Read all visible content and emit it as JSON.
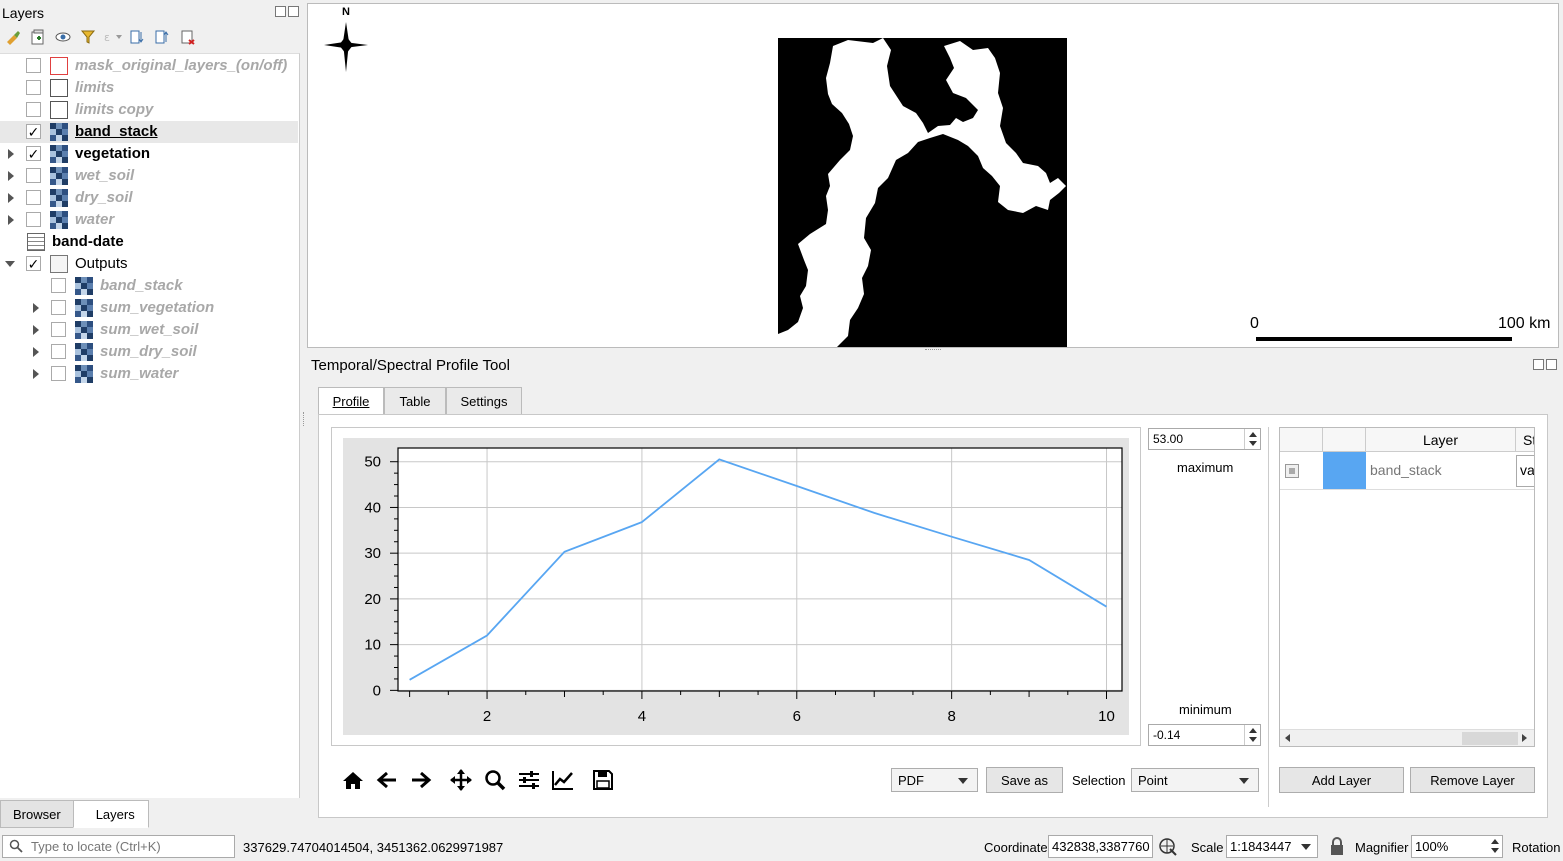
{
  "layers_panel": {
    "title": "Layers",
    "layers": [
      {
        "name": "mask_original_layers_(on/off)",
        "checked": false,
        "style": "off",
        "icon": "polygon-red-icon",
        "expander": false,
        "indent": 0
      },
      {
        "name": "limits",
        "checked": false,
        "style": "off",
        "icon": "polygon-icon",
        "expander": false,
        "indent": 0
      },
      {
        "name": "limits copy",
        "checked": false,
        "style": "off",
        "icon": "polygon-icon",
        "expander": false,
        "indent": 0
      },
      {
        "name": "band_stack",
        "checked": true,
        "style": "on",
        "icon": "raster-icon",
        "expander": false,
        "indent": 0,
        "selected": true
      },
      {
        "name": "vegetation",
        "checked": true,
        "style": "on",
        "icon": "raster-icon",
        "expander": true,
        "indent": 0
      },
      {
        "name": "wet_soil",
        "checked": false,
        "style": "off",
        "icon": "raster-icon",
        "expander": true,
        "indent": 0
      },
      {
        "name": "dry_soil",
        "checked": false,
        "style": "off",
        "icon": "raster-icon",
        "expander": true,
        "indent": 0
      },
      {
        "name": "water",
        "checked": false,
        "style": "off",
        "icon": "raster-icon",
        "expander": true,
        "indent": 0
      },
      {
        "name": "band-date",
        "checked": null,
        "style": "on",
        "icon": "table-icon",
        "expander": false,
        "indent": 0
      },
      {
        "name": "Outputs",
        "checked": true,
        "style": "plain",
        "icon": "group-icon",
        "expander": "open",
        "indent": 0
      },
      {
        "name": "band_stack",
        "checked": false,
        "style": "off",
        "icon": "raster-icon",
        "expander": false,
        "indent": 1
      },
      {
        "name": "sum_vegetation",
        "checked": false,
        "style": "off",
        "icon": "raster-icon",
        "expander": true,
        "indent": 1
      },
      {
        "name": "sum_wet_soil",
        "checked": false,
        "style": "off",
        "icon": "raster-icon",
        "expander": true,
        "indent": 1
      },
      {
        "name": "sum_dry_soil",
        "checked": false,
        "style": "off",
        "icon": "raster-icon",
        "expander": true,
        "indent": 1
      },
      {
        "name": "sum_water",
        "checked": false,
        "style": "off",
        "icon": "raster-icon",
        "expander": true,
        "indent": 1
      }
    ],
    "bottom_tabs": [
      "Browser",
      "Layers"
    ],
    "active_bottom_tab": "Layers"
  },
  "map": {
    "north_label": "N",
    "scale_start": "0",
    "scale_end": "100 km"
  },
  "profile_tool": {
    "title": "Temporal/Spectral Profile Tool",
    "tabs": [
      "Profile",
      "Table",
      "Settings"
    ],
    "active_tab": "Profile",
    "maximum_value": "53.00",
    "maximum_label": "maximum",
    "minimum_label": "minimum",
    "minimum_value": "-0.14",
    "layers_table": {
      "headers": [
        "",
        "",
        "Layer",
        "St"
      ],
      "rows": [
        {
          "layer": "band_stack",
          "color": "#58a6f2",
          "status": "va"
        }
      ]
    },
    "add_layer_label": "Add Layer",
    "remove_layer_label": "Remove Layer",
    "export_format": "PDF",
    "save_as_label": "Save as",
    "selection_label": "Selection",
    "selection_value": "Point",
    "plot_tools": [
      "home-icon",
      "back-arrow-icon",
      "forward-arrow-icon",
      "pan-icon",
      "zoom-icon",
      "configure-subplots-icon",
      "edit-curve-icon",
      "save-figure-icon"
    ]
  },
  "chart_data": {
    "type": "line",
    "title": "",
    "xlabel": "",
    "ylabel": "",
    "x": [
      1,
      2,
      3,
      4,
      5,
      6,
      7,
      8,
      9,
      10
    ],
    "series": [
      {
        "values": [
          2.3,
          12.0,
          30.3,
          36.8,
          50.5,
          44.7,
          38.8,
          33.6,
          28.5,
          18.3
        ],
        "color": "#58a6f2"
      }
    ],
    "xlim": [
      0.85,
      10.2
    ],
    "ylim": [
      -0.14,
      53.0
    ],
    "xticks": [
      2,
      4,
      6,
      8,
      10
    ],
    "yticks": [
      0,
      10,
      20,
      30,
      40,
      50
    ],
    "grid": true
  },
  "statusbar": {
    "locator_placeholder": "Type to locate (Ctrl+K)",
    "cursor_coords": "337629.74704014504, 3451362.0629971987",
    "coordinate_label": "Coordinate",
    "coordinate_value": "432838,3387760",
    "scale_label": "Scale",
    "scale_value": "1:1843447",
    "magnifier_label": "Magnifier",
    "magnifier_value": "100%",
    "rotation_label": "Rotation"
  }
}
